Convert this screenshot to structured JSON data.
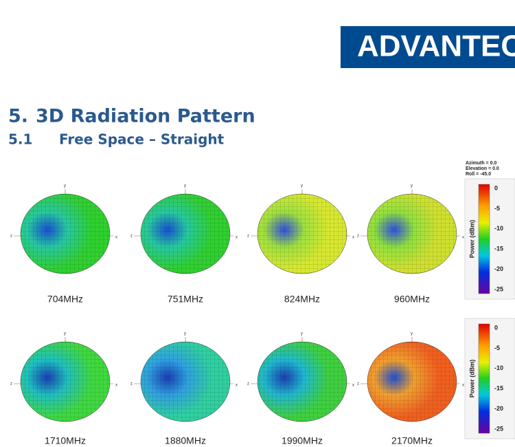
{
  "header": {
    "logo": "ADVANTECH"
  },
  "section": {
    "number": "5.",
    "title": "3D Radiation Pattern"
  },
  "subsection": {
    "number": "5.1",
    "title": "Free Space – Straight"
  },
  "view": [
    "Azimuth = 0.0",
    "Elevation = 0.0",
    "Roll = -45.0"
  ],
  "axis_labels": {
    "x": "x",
    "y": "y",
    "z": "z"
  },
  "rows": [
    {
      "patterns": [
        {
          "label": "704MHz"
        },
        {
          "label": "751MHz"
        },
        {
          "label": "824MHz"
        },
        {
          "label": "960MHz"
        }
      ],
      "legend": {
        "title": "Power (dBm)",
        "ticks": [
          0,
          -5,
          -10,
          -15,
          -20,
          -25
        ]
      }
    },
    {
      "patterns": [
        {
          "label": "1710MHz"
        },
        {
          "label": "1880MHz"
        },
        {
          "label": "1990MHz"
        },
        {
          "label": "2170MHz"
        }
      ],
      "legend": {
        "title": "Power (dBm)",
        "ticks": [
          0,
          -5,
          -10,
          -15,
          -20,
          -25
        ]
      }
    }
  ]
}
